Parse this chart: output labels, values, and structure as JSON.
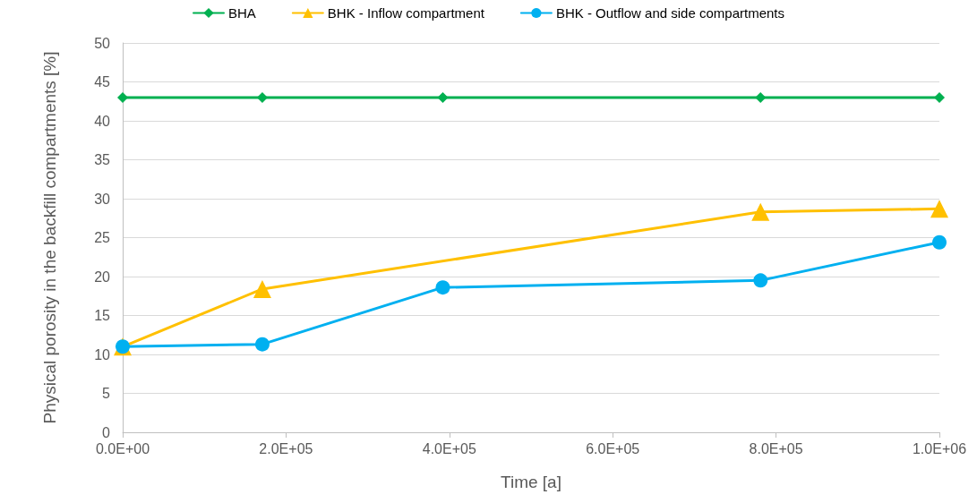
{
  "chart_data": {
    "type": "line",
    "xlabel": "Time [a]",
    "ylabel": "Physical porosity in the backfill compartments [%]",
    "series": [
      {
        "name": "BHA",
        "color": "#00b050",
        "marker": "diamond",
        "x": [
          0,
          171000,
          392000,
          781000,
          1000000
        ],
        "values": [
          43,
          43,
          43,
          43,
          43
        ]
      },
      {
        "name": "BHK - Inflow compartment",
        "color": "#ffc000",
        "marker": "triangle",
        "x": [
          0,
          171000,
          781000,
          1000000
        ],
        "values": [
          11.0,
          18.4,
          28.3,
          28.7
        ]
      },
      {
        "name": "BHK - Outflow and side compartments",
        "color": "#00b0f0",
        "marker": "circle",
        "x": [
          0,
          171000,
          392000,
          781000,
          1000000
        ],
        "values": [
          11.0,
          11.3,
          18.6,
          19.5,
          24.4
        ]
      }
    ],
    "xlim": [
      0,
      1000000
    ],
    "xticks": [
      {
        "value": 0,
        "label": "0.0E+00"
      },
      {
        "value": 200000,
        "label": "2.0E+05"
      },
      {
        "value": 400000,
        "label": "4.0E+05"
      },
      {
        "value": 600000,
        "label": "6.0E+05"
      },
      {
        "value": 800000,
        "label": "8.0E+05"
      },
      {
        "value": 1000000,
        "label": "1.0E+06"
      }
    ],
    "ylim": [
      0,
      50
    ],
    "yticks": [
      0,
      5,
      10,
      15,
      20,
      25,
      30,
      35,
      40,
      45,
      50
    ],
    "grid": "y",
    "legend": "top",
    "line_style": "solid"
  }
}
